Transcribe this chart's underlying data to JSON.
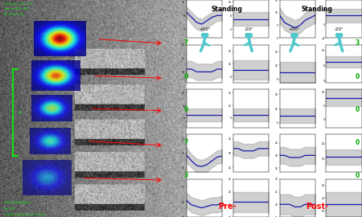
{
  "title_left": "Standing",
  "title_right": "Standing",
  "subtitle_left_1": "+50°",
  "subtitle_left_2": "-20°",
  "subtitle_right_1": "+50°",
  "subtitle_right_2": "-20°",
  "pre_label": "Pre-",
  "post_label": "Post-",
  "pre_label_color": "#ff0000",
  "post_label_color": "#ff0000",
  "row_numbers_left": [
    "7",
    "0",
    "0",
    "7",
    "3"
  ],
  "row_numbers_right": [
    "3",
    "0",
    "0",
    "0",
    "0"
  ],
  "number_color": "#00aa00",
  "line_color": "#1a1aaa",
  "shade_color": "#aaaaaa",
  "n_rows": 5,
  "icon_color": "#4ec8cc",
  "rows_ylims_pre_flex": [
    [
      -5,
      17
    ],
    [
      6,
      20
    ],
    [
      5,
      17
    ],
    [
      10,
      50
    ],
    [
      10,
      35
    ]
  ],
  "rows_ylims_pre_ext": [
    [
      -5,
      17
    ],
    [
      6,
      18
    ],
    [
      5,
      17
    ],
    [
      10,
      26
    ],
    [
      10,
      25
    ]
  ],
  "rows_ylims_post_flex": [
    [
      0,
      15
    ],
    [
      7,
      18
    ],
    [
      4,
      20
    ],
    [
      10,
      28
    ],
    [
      15,
      30
    ]
  ],
  "rows_ylims_post_ext": [
    [
      -8,
      14
    ],
    [
      -1,
      19
    ],
    [
      -3,
      11
    ],
    [
      9,
      29
    ],
    [
      14,
      26
    ]
  ],
  "pre_flex_curves": [
    {
      "mean": [
        10,
        7,
        4,
        3,
        5,
        7,
        8,
        8
      ],
      "shade_upper": [
        13,
        10,
        7,
        6,
        8,
        10,
        11,
        12
      ],
      "shade_lower": [
        7,
        3,
        0,
        -1,
        1,
        3,
        5,
        5
      ]
    },
    {
      "mean": [
        11,
        11,
        10,
        10,
        10,
        10,
        11,
        11
      ],
      "shade_upper": [
        14,
        14,
        13,
        13,
        13,
        13,
        14,
        14
      ],
      "shade_lower": [
        8,
        8,
        7,
        7,
        7,
        7,
        8,
        8
      ]
    },
    {
      "mean": [
        9,
        9,
        9,
        9,
        9,
        9,
        9,
        9
      ],
      "shade_upper": [
        11,
        11,
        11,
        11,
        11,
        11,
        11,
        11
      ],
      "shade_lower": [
        7,
        7,
        7,
        7,
        7,
        7,
        7,
        7
      ]
    },
    {
      "mean": [
        28,
        22,
        17,
        16,
        18,
        22,
        26,
        27
      ],
      "shade_upper": [
        36,
        29,
        24,
        23,
        25,
        29,
        33,
        34
      ],
      "shade_lower": [
        20,
        15,
        10,
        9,
        11,
        15,
        19,
        20
      ]
    },
    {
      "mean": [
        21,
        18,
        17,
        16,
        17,
        18,
        18,
        19
      ],
      "shade_upper": [
        26,
        23,
        22,
        21,
        22,
        23,
        23,
        24
      ],
      "shade_lower": [
        16,
        13,
        12,
        11,
        12,
        13,
        13,
        14
      ]
    }
  ],
  "pre_ext_curves": [
    {
      "mean": [
        6,
        6,
        6,
        6,
        6,
        6,
        6,
        6
      ],
      "shade_upper": [
        10,
        10,
        10,
        10,
        10,
        10,
        10,
        10
      ],
      "shade_lower": [
        2,
        2,
        2,
        2,
        2,
        2,
        2,
        2
      ]
    },
    {
      "mean": [
        10,
        10,
        10,
        10,
        10,
        10,
        10,
        10
      ],
      "shade_upper": [
        13,
        13,
        13,
        13,
        13,
        13,
        13,
        13
      ],
      "shade_lower": [
        7,
        7,
        7,
        7,
        7,
        7,
        7,
        7
      ]
    },
    {
      "mean": [
        9,
        9,
        9,
        9,
        9,
        9,
        9,
        9
      ],
      "shade_upper": [
        11,
        11,
        11,
        11,
        11,
        11,
        11,
        11
      ],
      "shade_lower": [
        7,
        7,
        7,
        7,
        7,
        7,
        7,
        7
      ]
    },
    {
      "mean": [
        20,
        20,
        19,
        19,
        19,
        20,
        20,
        20
      ],
      "shade_upper": [
        23,
        23,
        22,
        22,
        22,
        23,
        23,
        23
      ],
      "shade_lower": [
        17,
        17,
        16,
        16,
        16,
        17,
        17,
        17
      ]
    },
    {
      "mean": [
        16,
        16,
        16,
        16,
        16,
        16,
        16,
        16
      ],
      "shade_upper": [
        20,
        20,
        20,
        20,
        20,
        20,
        20,
        20
      ],
      "shade_lower": [
        12,
        12,
        12,
        12,
        12,
        12,
        12,
        12
      ]
    }
  ],
  "post_flex_curves": [
    {
      "mean": [
        9,
        6,
        5,
        4,
        5,
        7,
        8,
        9
      ],
      "shade_upper": [
        12,
        9,
        8,
        7,
        8,
        10,
        11,
        12
      ],
      "shade_lower": [
        6,
        3,
        2,
        1,
        2,
        4,
        5,
        6
      ]
    },
    {
      "mean": [
        10,
        10,
        10,
        10,
        10,
        10,
        10,
        10
      ],
      "shade_upper": [
        13,
        13,
        13,
        13,
        13,
        13,
        13,
        13
      ],
      "shade_lower": [
        7,
        7,
        7,
        7,
        7,
        7,
        7,
        7
      ]
    },
    {
      "mean": [
        9,
        9,
        9,
        9,
        9,
        9,
        9,
        9
      ],
      "shade_upper": [
        12,
        12,
        12,
        12,
        12,
        12,
        12,
        12
      ],
      "shade_lower": [
        6,
        6,
        6,
        6,
        6,
        6,
        6,
        6
      ]
    },
    {
      "mean": [
        18,
        18,
        17,
        17,
        17,
        18,
        18,
        18
      ],
      "shade_upper": [
        22,
        22,
        21,
        21,
        21,
        22,
        22,
        22
      ],
      "shade_lower": [
        14,
        14,
        13,
        13,
        13,
        14,
        14,
        14
      ]
    },
    {
      "mean": [
        20,
        20,
        20,
        19,
        19,
        20,
        20,
        20
      ],
      "shade_upper": [
        24,
        24,
        24,
        23,
        23,
        24,
        24,
        24
      ],
      "shade_lower": [
        16,
        16,
        16,
        15,
        15,
        16,
        16,
        16
      ]
    }
  ],
  "post_ext_curves": [
    {
      "mean": [
        5,
        5,
        5,
        5,
        5,
        5,
        5,
        5
      ],
      "shade_upper": [
        9,
        9,
        9,
        9,
        9,
        9,
        9,
        9
      ],
      "shade_lower": [
        1,
        1,
        1,
        1,
        1,
        1,
        1,
        1
      ]
    },
    {
      "mean": [
        10,
        10,
        10,
        10,
        10,
        10,
        10,
        10
      ],
      "shade_upper": [
        13,
        13,
        13,
        13,
        13,
        13,
        13,
        13
      ],
      "shade_lower": [
        7,
        7,
        7,
        7,
        7,
        7,
        7,
        7
      ]
    },
    {
      "mean": [
        8,
        8,
        8,
        8,
        8,
        8,
        8,
        8
      ],
      "shade_upper": [
        11,
        11,
        11,
        11,
        11,
        11,
        11,
        11
      ],
      "shade_lower": [
        5,
        5,
        5,
        5,
        5,
        5,
        5,
        5
      ]
    },
    {
      "mean": [
        17,
        17,
        17,
        17,
        17,
        17,
        17,
        17
      ],
      "shade_upper": [
        21,
        21,
        21,
        21,
        21,
        21,
        21,
        21
      ],
      "shade_lower": [
        13,
        13,
        13,
        13,
        13,
        13,
        13,
        13
      ]
    },
    {
      "mean": [
        18,
        18,
        18,
        18,
        18,
        18,
        18,
        18
      ],
      "shade_upper": [
        22,
        22,
        22,
        22,
        22,
        22,
        22,
        22
      ],
      "shade_lower": [
        14,
        14,
        14,
        14,
        14,
        14,
        14,
        14
      ]
    }
  ]
}
